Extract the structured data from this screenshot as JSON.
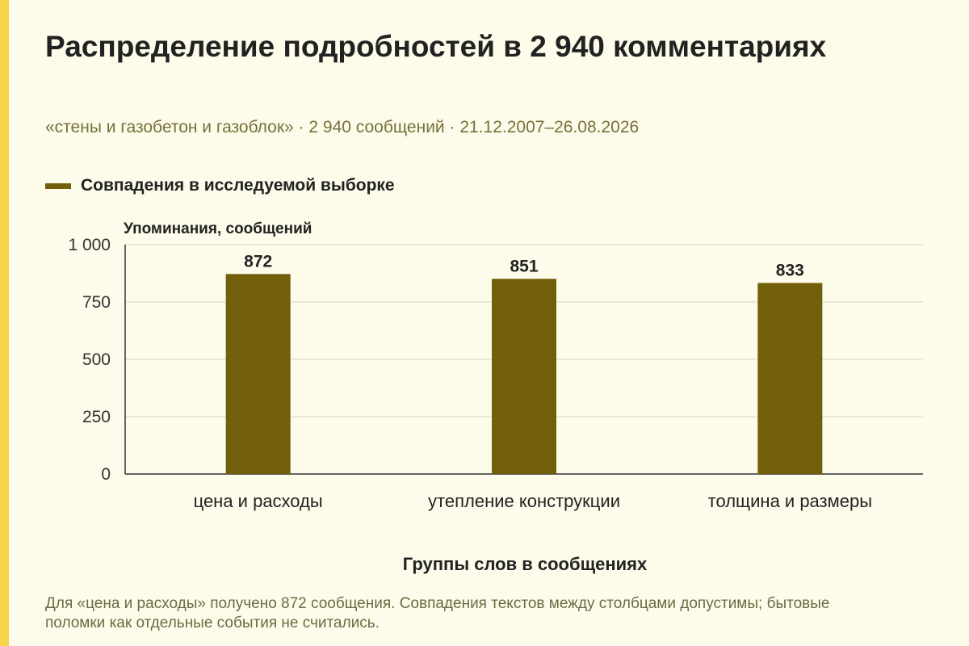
{
  "title": "Распределение подробностей в 2 940 комментариях",
  "subtitle": "«стены и газобетон и газоблок» · 2 940 сообщений · 21.12.2007–26.08.2026",
  "note": "Для «цена и расходы» получено 872 сообщения. Совпадения текстов между столбцами допустимы; бытовые поломки как отдельные события не считались.",
  "colors": {
    "bar": "#725f0b",
    "accent": "#f7d54a",
    "background": "#fdfbea"
  },
  "chart_data": {
    "type": "bar",
    "categories": [
      "цена и расходы",
      "утепление конструкции",
      "толщина и размеры"
    ],
    "series": [
      {
        "name": "Совпадения в исследуемой выборке",
        "values": [
          872,
          851,
          833
        ]
      }
    ],
    "data_labels": [
      "872",
      "851",
      "833"
    ],
    "ylabel": "Упоминания, сообщений",
    "xlabel": "Группы слов в сообщениях",
    "ylim": [
      0,
      1000
    ],
    "yticks": [
      0,
      250,
      500,
      750,
      1000
    ],
    "ytick_labels": [
      "0",
      "250",
      "500",
      "750",
      "1 000"
    ],
    "grid": true,
    "legend": "top-left"
  }
}
